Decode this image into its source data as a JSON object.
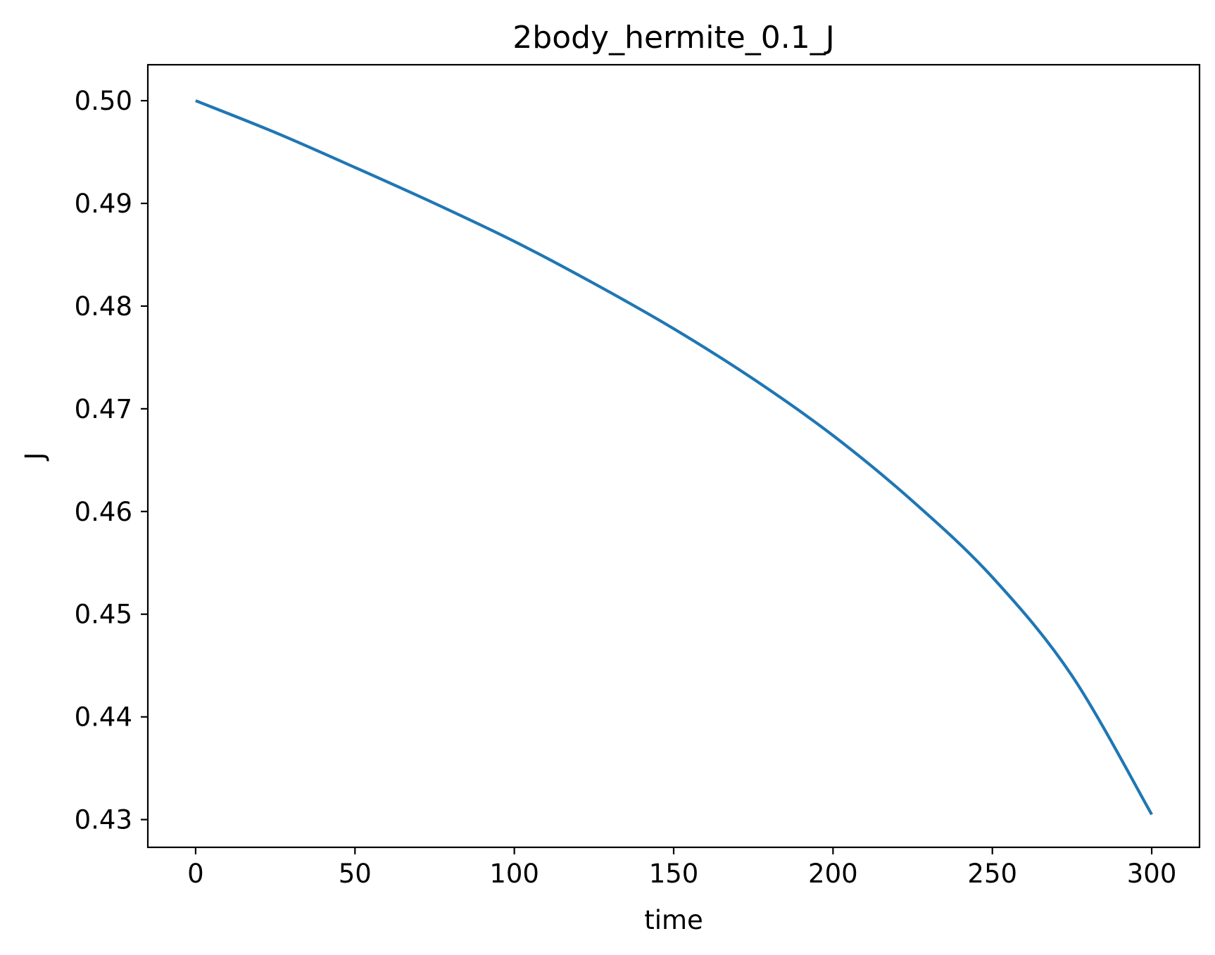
{
  "chart_data": {
    "type": "line",
    "title": "2body_hermite_0.1_J",
    "xlabel": "time",
    "ylabel": "J",
    "xlim": [
      -15,
      315
    ],
    "ylim": [
      0.4273,
      0.5035
    ],
    "x_ticks": [
      0,
      50,
      100,
      150,
      200,
      250,
      300
    ],
    "x_tick_labels": [
      "0",
      "50",
      "100",
      "150",
      "200",
      "250",
      "300"
    ],
    "y_ticks": [
      0.43,
      0.44,
      0.45,
      0.46,
      0.47,
      0.48,
      0.49,
      0.5
    ],
    "y_tick_labels": [
      "0.43",
      "0.44",
      "0.45",
      "0.46",
      "0.47",
      "0.48",
      "0.49",
      "0.50"
    ],
    "grid": false,
    "series": [
      {
        "color": "#1f77b4",
        "x": [
          0,
          25,
          50,
          75,
          100,
          125,
          150,
          175,
          200,
          225,
          250,
          275,
          300
        ],
        "y": [
          0.5,
          0.4969,
          0.4935,
          0.49,
          0.4863,
          0.4822,
          0.4778,
          0.4729,
          0.4674,
          0.461,
          0.4536,
          0.444,
          0.4305
        ]
      }
    ]
  }
}
